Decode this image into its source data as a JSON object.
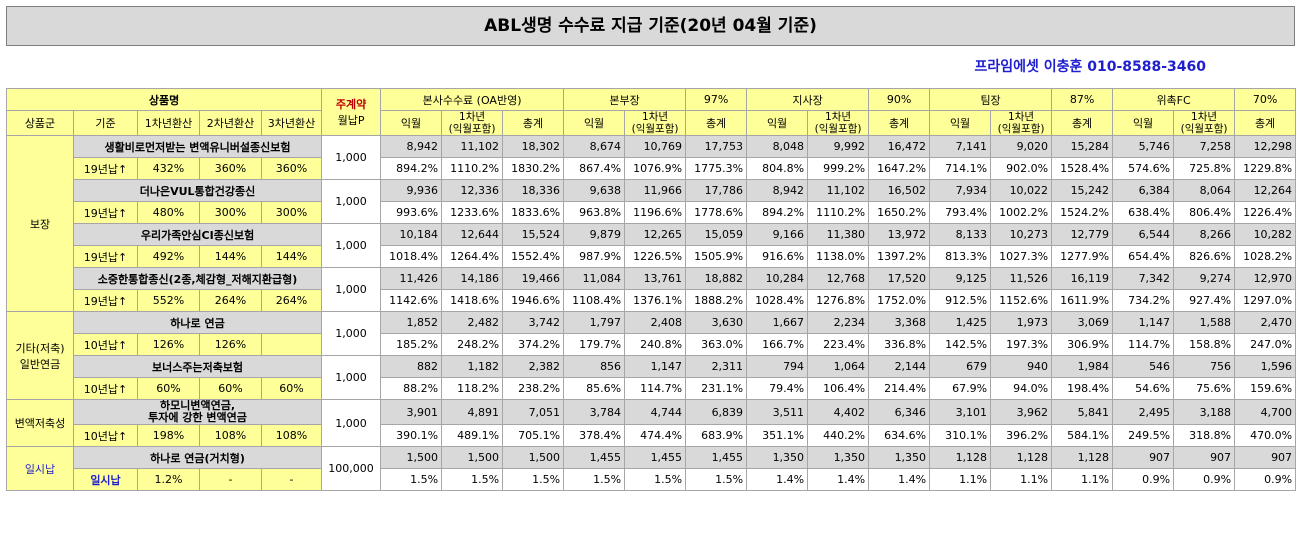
{
  "title": "ABL생명 수수료 지급 기준(20년 04월 기준)",
  "contact": "프라임에셋 이충훈 010-8588-3460",
  "header": {
    "product_name": "상품명",
    "main_contract": "주계약",
    "monthly_premium": "월납P",
    "group": "상품군",
    "basis": "기준",
    "y1": "1차년환산",
    "y2": "2차년환산",
    "y3": "3차년환산",
    "sections": [
      {
        "name": "본사수수료 (OA반영)",
        "pct": ""
      },
      {
        "name": "본부장",
        "pct": "97%"
      },
      {
        "name": "지사장",
        "pct": "90%"
      },
      {
        "name": "팀장",
        "pct": "87%"
      },
      {
        "name": "위촉FC",
        "pct": "70%"
      }
    ],
    "sub_ik": "익월",
    "sub_1y": "1차년(익월포함)",
    "sub_total": "총계"
  },
  "groups": {
    "g1": "보장",
    "g2": "기타(저축) 일반연금",
    "g3": "변액저축성",
    "g4": "일시납"
  },
  "products": [
    {
      "name": "생활비로먼저받는 변액유니버설종신보험",
      "basis": "19년납↑",
      "y1": "432%",
      "y2": "360%",
      "y3": "360%",
      "premium": "1,000",
      "amounts": [
        "8,942",
        "11,102",
        "18,302",
        "8,674",
        "10,769",
        "17,753",
        "8,048",
        "9,992",
        "16,472",
        "7,141",
        "9,020",
        "15,284",
        "5,746",
        "7,258",
        "12,298"
      ],
      "rates": [
        "894.2%",
        "1110.2%",
        "1830.2%",
        "867.4%",
        "1076.9%",
        "1775.3%",
        "804.8%",
        "999.2%",
        "1647.2%",
        "714.1%",
        "902.0%",
        "1528.4%",
        "574.6%",
        "725.8%",
        "1229.8%"
      ]
    },
    {
      "name": "더나은VUL통합건강종신",
      "basis": "19년납↑",
      "y1": "480%",
      "y2": "300%",
      "y3": "300%",
      "premium": "1,000",
      "amounts": [
        "9,936",
        "12,336",
        "18,336",
        "9,638",
        "11,966",
        "17,786",
        "8,942",
        "11,102",
        "16,502",
        "7,934",
        "10,022",
        "15,242",
        "6,384",
        "8,064",
        "12,264"
      ],
      "rates": [
        "993.6%",
        "1233.6%",
        "1833.6%",
        "963.8%",
        "1196.6%",
        "1778.6%",
        "894.2%",
        "1110.2%",
        "1650.2%",
        "793.4%",
        "1002.2%",
        "1524.2%",
        "638.4%",
        "806.4%",
        "1226.4%"
      ]
    },
    {
      "name": "우리가족안심CI종신보험",
      "basis": "19년납↑",
      "y1": "492%",
      "y2": "144%",
      "y3": "144%",
      "premium": "1,000",
      "amounts": [
        "10,184",
        "12,644",
        "15,524",
        "9,879",
        "12,265",
        "15,059",
        "9,166",
        "11,380",
        "13,972",
        "8,133",
        "10,273",
        "12,779",
        "6,544",
        "8,266",
        "10,282"
      ],
      "rates": [
        "1018.4%",
        "1264.4%",
        "1552.4%",
        "987.9%",
        "1226.5%",
        "1505.9%",
        "916.6%",
        "1138.0%",
        "1397.2%",
        "813.3%",
        "1027.3%",
        "1277.9%",
        "654.4%",
        "826.6%",
        "1028.2%"
      ]
    },
    {
      "name": "소중한통합종신(2종,체감형_저해지환급형)",
      "basis": "19년납↑",
      "y1": "552%",
      "y2": "264%",
      "y3": "264%",
      "premium": "1,000",
      "amounts": [
        "11,426",
        "14,186",
        "19,466",
        "11,084",
        "13,761",
        "18,882",
        "10,284",
        "12,768",
        "17,520",
        "9,125",
        "11,526",
        "16,119",
        "7,342",
        "9,274",
        "12,970"
      ],
      "rates": [
        "1142.6%",
        "1418.6%",
        "1946.6%",
        "1108.4%",
        "1376.1%",
        "1888.2%",
        "1028.4%",
        "1276.8%",
        "1752.0%",
        "912.5%",
        "1152.6%",
        "1611.9%",
        "734.2%",
        "927.4%",
        "1297.0%"
      ]
    },
    {
      "name": "하나로 연금",
      "basis": "10년납↑",
      "y1": "126%",
      "y2": "126%",
      "y3": "",
      "premium": "1,000",
      "amounts": [
        "1,852",
        "2,482",
        "3,742",
        "1,797",
        "2,408",
        "3,630",
        "1,667",
        "2,234",
        "3,368",
        "1,425",
        "1,973",
        "3,069",
        "1,147",
        "1,588",
        "2,470"
      ],
      "rates": [
        "185.2%",
        "248.2%",
        "374.2%",
        "179.7%",
        "240.8%",
        "363.0%",
        "166.7%",
        "223.4%",
        "336.8%",
        "142.5%",
        "197.3%",
        "306.9%",
        "114.7%",
        "158.8%",
        "247.0%"
      ]
    },
    {
      "name": "보너스주는저축보험",
      "basis": "10년납↑",
      "y1": "60%",
      "y2": "60%",
      "y3": "60%",
      "premium": "1,000",
      "amounts": [
        "882",
        "1,182",
        "2,382",
        "856",
        "1,147",
        "2,311",
        "794",
        "1,064",
        "2,144",
        "679",
        "940",
        "1,984",
        "546",
        "756",
        "1,596"
      ],
      "rates": [
        "88.2%",
        "118.2%",
        "238.2%",
        "85.6%",
        "114.7%",
        "231.1%",
        "79.4%",
        "106.4%",
        "214.4%",
        "67.9%",
        "94.0%",
        "198.4%",
        "54.6%",
        "75.6%",
        "159.6%"
      ]
    },
    {
      "name": "하모니변액연금, 투자에 강한 변액연금",
      "name_line1": "하모니변액연금,",
      "name_line2": "투자에 강한 변액연금",
      "basis": "10년납↑",
      "y1": "198%",
      "y2": "108%",
      "y3": "108%",
      "premium": "1,000",
      "amounts": [
        "3,901",
        "4,891",
        "7,051",
        "3,784",
        "4,744",
        "6,839",
        "3,511",
        "4,402",
        "6,346",
        "3,101",
        "3,962",
        "5,841",
        "2,495",
        "3,188",
        "4,700"
      ],
      "rates": [
        "390.1%",
        "489.1%",
        "705.1%",
        "378.4%",
        "474.4%",
        "683.9%",
        "351.1%",
        "440.2%",
        "634.6%",
        "310.1%",
        "396.2%",
        "584.1%",
        "249.5%",
        "318.8%",
        "470.0%"
      ]
    },
    {
      "name": "하나로 연금(거치형)",
      "basis": "일시납",
      "y1": "1.2%",
      "y2": "-",
      "y3": "-",
      "premium": "100,000",
      "amounts": [
        "1,500",
        "1,500",
        "1,500",
        "1,455",
        "1,455",
        "1,455",
        "1,350",
        "1,350",
        "1,350",
        "1,128",
        "1,128",
        "1,128",
        "907",
        "907",
        "907"
      ],
      "rates": [
        "1.5%",
        "1.5%",
        "1.5%",
        "1.5%",
        "1.5%",
        "1.5%",
        "1.4%",
        "1.4%",
        "1.4%",
        "1.1%",
        "1.1%",
        "1.1%",
        "0.9%",
        "0.9%",
        "0.9%"
      ]
    }
  ]
}
